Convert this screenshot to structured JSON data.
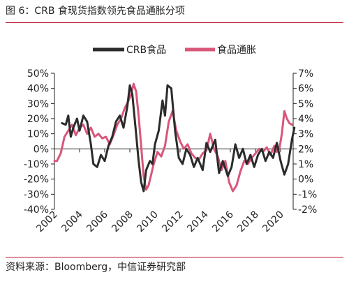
{
  "figure": {
    "title": "图 6：CRB 食现货指数领先食品通胀分项",
    "source": "资料来源：Bloomberg，中信证券研究部"
  },
  "chart_data": {
    "type": "line",
    "legend_placement": "top-center",
    "grid": false,
    "left_axis": {
      "ylim": [
        -40,
        50
      ],
      "ticks": [
        "50%",
        "40%",
        "30%",
        "20%",
        "10%",
        "0%",
        "-10%",
        "-20%",
        "-30%",
        "-40%"
      ]
    },
    "right_axis": {
      "ylim": [
        -2,
        7
      ],
      "ticks": [
        "7%",
        "6%",
        "5%",
        "4%",
        "3%",
        "2%",
        "1%",
        "0%",
        "-1%",
        "-2%"
      ]
    },
    "x_axis": {
      "xlim": [
        2002,
        2021
      ],
      "ticks": [
        "2002",
        "2004",
        "2006",
        "2008",
        "2010",
        "2012",
        "2014",
        "2016",
        "2018",
        "2020"
      ]
    },
    "series": [
      {
        "name": "CRB食品",
        "axis": "left",
        "color": "#2b2b2b",
        "points": [
          [
            2002.6,
            17
          ],
          [
            2002.9,
            16
          ],
          [
            2003.1,
            22
          ],
          [
            2003.3,
            8
          ],
          [
            2003.5,
            14
          ],
          [
            2003.8,
            20
          ],
          [
            2004.0,
            12
          ],
          [
            2004.3,
            22
          ],
          [
            2004.6,
            18
          ],
          [
            2004.9,
            3
          ],
          [
            2005.1,
            -10
          ],
          [
            2005.4,
            -12
          ],
          [
            2005.7,
            -4
          ],
          [
            2006.0,
            -8
          ],
          [
            2006.3,
            2
          ],
          [
            2006.6,
            8
          ],
          [
            2006.9,
            18
          ],
          [
            2007.2,
            22
          ],
          [
            2007.5,
            14
          ],
          [
            2007.8,
            28
          ],
          [
            2008.0,
            42
          ],
          [
            2008.2,
            36
          ],
          [
            2008.5,
            10
          ],
          [
            2008.7,
            -8
          ],
          [
            2008.9,
            -22
          ],
          [
            2009.1,
            -28
          ],
          [
            2009.3,
            -14
          ],
          [
            2009.6,
            -8
          ],
          [
            2009.8,
            -10
          ],
          [
            2010.0,
            3
          ],
          [
            2010.3,
            12
          ],
          [
            2010.6,
            32
          ],
          [
            2010.8,
            22
          ],
          [
            2011.0,
            42
          ],
          [
            2011.3,
            40
          ],
          [
            2011.6,
            12
          ],
          [
            2011.9,
            -6
          ],
          [
            2012.2,
            -10
          ],
          [
            2012.5,
            0
          ],
          [
            2012.8,
            -4
          ],
          [
            2013.1,
            -12
          ],
          [
            2013.4,
            -6
          ],
          [
            2013.8,
            -14
          ],
          [
            2014.1,
            4
          ],
          [
            2014.4,
            -2
          ],
          [
            2014.8,
            6
          ],
          [
            2015.1,
            -16
          ],
          [
            2015.4,
            -8
          ],
          [
            2015.8,
            -18
          ],
          [
            2016.1,
            -12
          ],
          [
            2016.4,
            3
          ],
          [
            2016.7,
            -6
          ],
          [
            2017.0,
            0
          ],
          [
            2017.3,
            -10
          ],
          [
            2017.6,
            -4
          ],
          [
            2017.9,
            -12
          ],
          [
            2018.2,
            -4
          ],
          [
            2018.5,
            0
          ],
          [
            2018.8,
            -8
          ],
          [
            2019.1,
            -2
          ],
          [
            2019.4,
            -6
          ],
          [
            2019.7,
            4
          ],
          [
            2020.0,
            -8
          ],
          [
            2020.3,
            -17
          ],
          [
            2020.6,
            -10
          ],
          [
            2020.9,
            6
          ],
          [
            2021.1,
            14
          ]
        ]
      },
      {
        "name": "食品通胀",
        "axis": "right",
        "color": "#d9567a",
        "points": [
          [
            2002.0,
            1.2
          ],
          [
            2002.2,
            1.2
          ],
          [
            2002.5,
            1.7
          ],
          [
            2002.8,
            2.8
          ],
          [
            2003.1,
            3.2
          ],
          [
            2003.4,
            3.6
          ],
          [
            2003.7,
            2.9
          ],
          [
            2004.0,
            3.4
          ],
          [
            2004.3,
            3.6
          ],
          [
            2004.6,
            3.0
          ],
          [
            2004.9,
            3.4
          ],
          [
            2005.2,
            2.8
          ],
          [
            2005.5,
            3.0
          ],
          [
            2005.8,
            2.7
          ],
          [
            2006.1,
            2.8
          ],
          [
            2006.4,
            2.3
          ],
          [
            2006.7,
            2.9
          ],
          [
            2007.0,
            3.6
          ],
          [
            2007.3,
            4.0
          ],
          [
            2007.6,
            4.7
          ],
          [
            2007.9,
            5.2
          ],
          [
            2008.1,
            5.6
          ],
          [
            2008.3,
            6.3
          ],
          [
            2008.5,
            5.8
          ],
          [
            2008.7,
            4.2
          ],
          [
            2008.9,
            2.2
          ],
          [
            2009.1,
            0.2
          ],
          [
            2009.3,
            -0.7
          ],
          [
            2009.5,
            -0.4
          ],
          [
            2009.7,
            0.3
          ],
          [
            2009.9,
            1.0
          ],
          [
            2010.2,
            1.8
          ],
          [
            2010.5,
            1.5
          ],
          [
            2010.8,
            2.2
          ],
          [
            2011.1,
            3.8
          ],
          [
            2011.4,
            4.5
          ],
          [
            2011.7,
            3.2
          ],
          [
            2012.0,
            2.5
          ],
          [
            2012.3,
            2.0
          ],
          [
            2012.6,
            2.3
          ],
          [
            2012.9,
            1.7
          ],
          [
            2013.2,
            1.4
          ],
          [
            2013.5,
            1.3
          ],
          [
            2013.8,
            1.7
          ],
          [
            2014.1,
            1.9
          ],
          [
            2014.4,
            3.0
          ],
          [
            2014.7,
            2.0
          ],
          [
            2015.0,
            1.5
          ],
          [
            2015.3,
            0.6
          ],
          [
            2015.6,
            1.2
          ],
          [
            2015.9,
            -0.2
          ],
          [
            2016.2,
            -0.8
          ],
          [
            2016.5,
            -0.4
          ],
          [
            2016.8,
            0.5
          ],
          [
            2017.1,
            1.2
          ],
          [
            2017.4,
            1.0
          ],
          [
            2017.7,
            1.4
          ],
          [
            2018.0,
            1.7
          ],
          [
            2018.3,
            2.0
          ],
          [
            2018.6,
            1.8
          ],
          [
            2018.9,
            2.1
          ],
          [
            2019.2,
            1.6
          ],
          [
            2019.5,
            2.2
          ],
          [
            2019.7,
            1.8
          ],
          [
            2019.9,
            2.0
          ],
          [
            2020.1,
            3.0
          ],
          [
            2020.3,
            4.5
          ],
          [
            2020.5,
            4.0
          ],
          [
            2020.7,
            3.7
          ],
          [
            2020.9,
            3.6
          ]
        ]
      }
    ]
  }
}
